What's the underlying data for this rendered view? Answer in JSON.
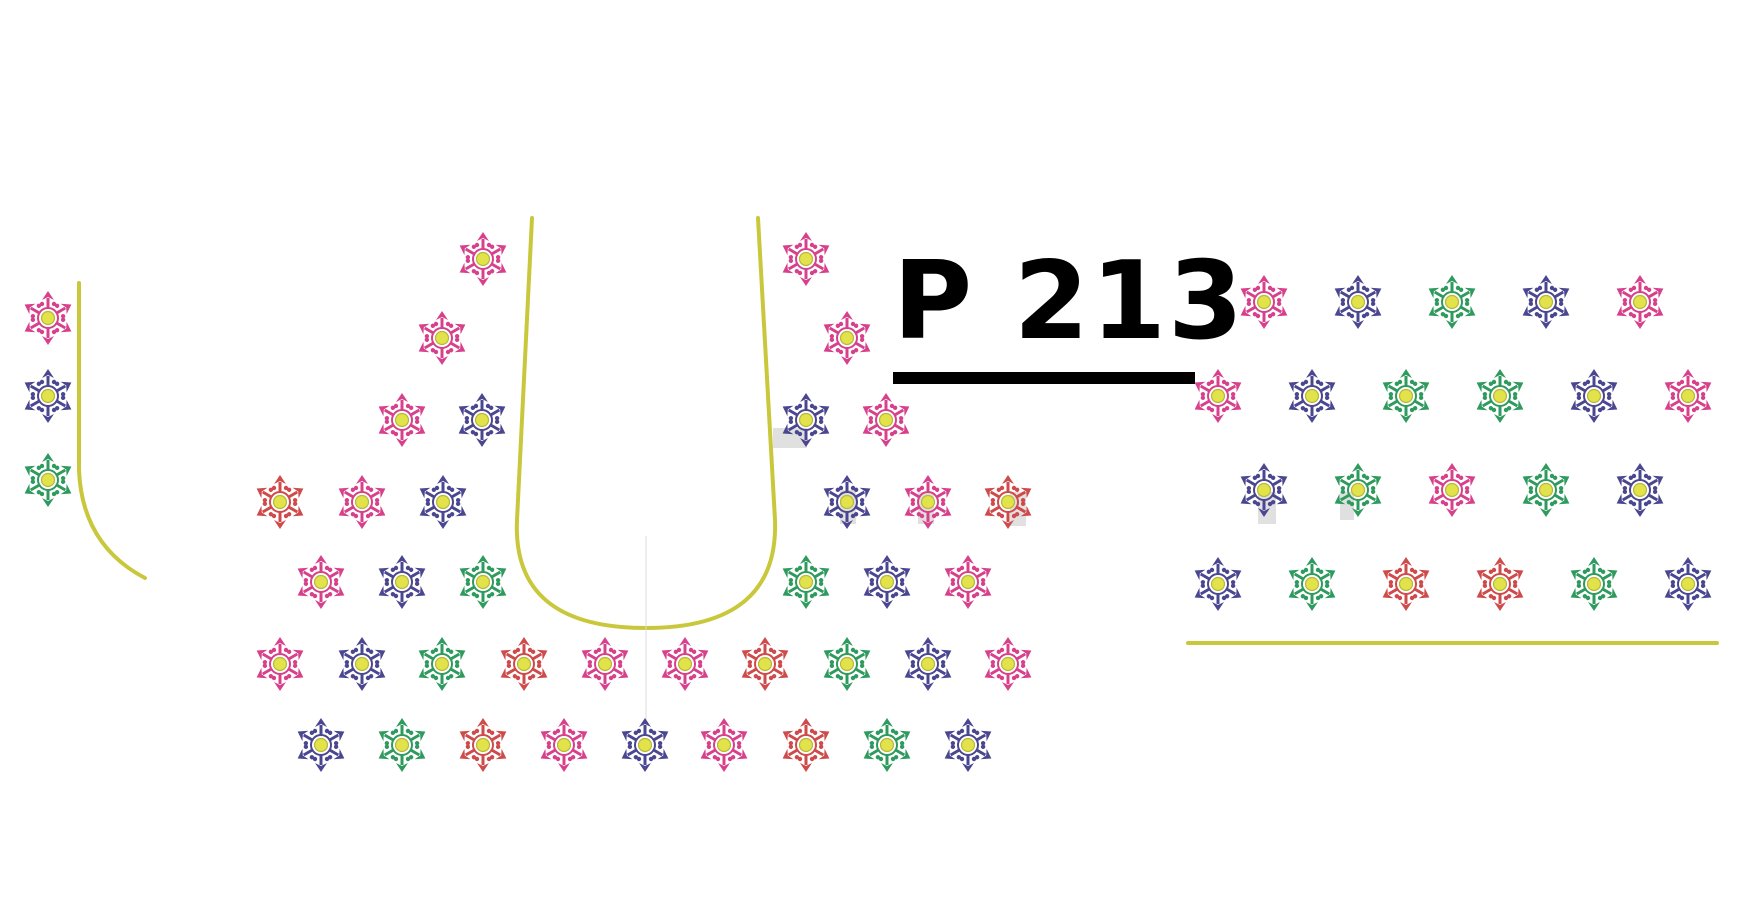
{
  "design_code": "P 213",
  "colors": {
    "pink": "#d7418c",
    "navy": "#4a4790",
    "green": "#2f9a5e",
    "red": "#cf4a4a",
    "center": "#e2e24a",
    "center_ring": "#b8b83a",
    "border_line": "#c9c83c",
    "watermark": "#c8c8c8",
    "text": "#000000"
  },
  "motif_icon": "six-petal-flower-icon",
  "left_strip": {
    "flowers": [
      "pink",
      "navy",
      "green"
    ]
  },
  "front_panel": {
    "rows": [
      [
        "pink",
        "pink"
      ],
      [
        "pink",
        "pink"
      ],
      [
        "pink",
        "navy",
        "navy",
        "pink"
      ],
      [
        "red",
        "pink",
        "navy",
        "navy",
        "pink",
        "red"
      ],
      [
        "pink",
        "navy",
        "green",
        "green",
        "navy",
        "pink"
      ],
      [
        "pink",
        "navy",
        "green",
        "red",
        "pink",
        "pink",
        "red",
        "green",
        "navy",
        "pink"
      ],
      [
        "navy",
        "green",
        "red",
        "pink",
        "navy",
        "pink",
        "red",
        "green",
        "navy"
      ]
    ]
  },
  "sleeve_panel": {
    "rows": [
      [
        "pink",
        "navy",
        "green",
        "navy",
        "pink"
      ],
      [
        "pink",
        "navy",
        "green",
        "green",
        "navy",
        "pink"
      ],
      [
        "navy",
        "green",
        "pink",
        "green",
        "navy"
      ],
      [
        "navy",
        "green",
        "red",
        "red",
        "green",
        "navy"
      ]
    ]
  }
}
